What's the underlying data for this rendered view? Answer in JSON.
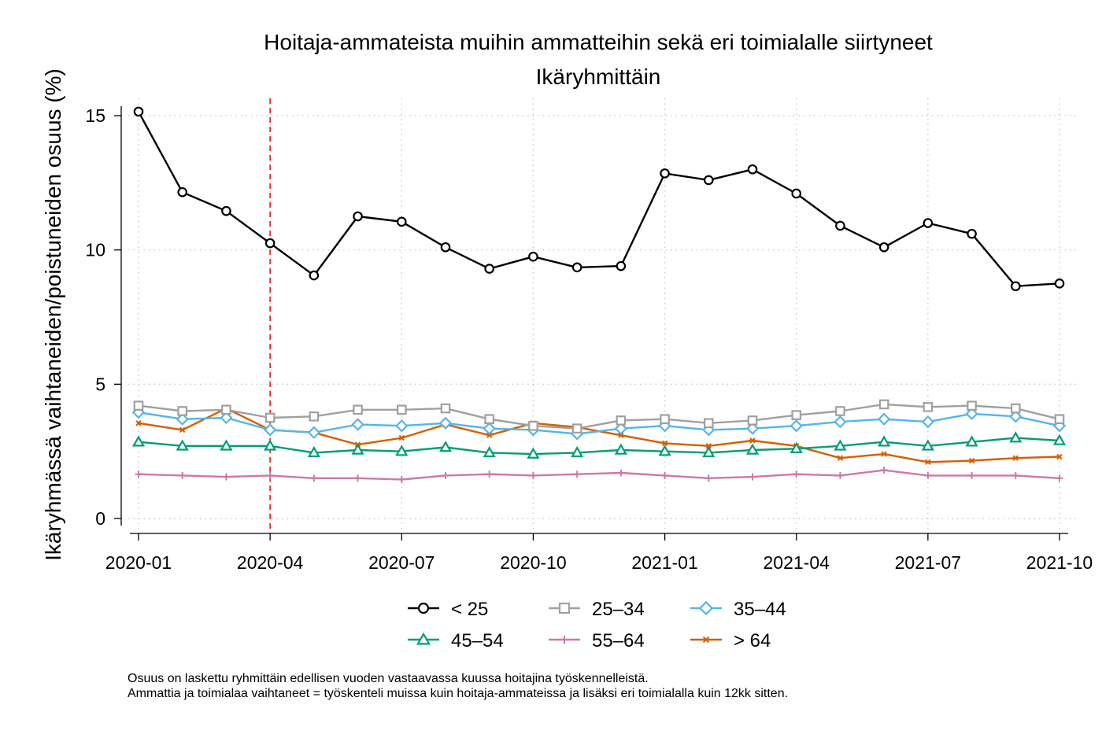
{
  "chart_data": {
    "type": "line",
    "title": "Hoitaja-ammateista muihin ammatteihin sekä eri toimialalle siirtyneet",
    "subtitle": "Ikäryhmittäin",
    "xlabel": "",
    "ylabel": "Ikäryhmässä vaihtaneiden/poistuneiden osuus (%)",
    "ylim": [
      0,
      15.5
    ],
    "yticks": [
      "0",
      "5",
      "10",
      "15"
    ],
    "x": [
      "2020-01",
      "2020-02",
      "2020-03",
      "2020-04",
      "2020-05",
      "2020-06",
      "2020-07",
      "2020-08",
      "2020-09",
      "2020-10",
      "2020-11",
      "2020-12",
      "2021-01",
      "2021-02",
      "2021-03",
      "2021-04",
      "2021-05",
      "2021-06",
      "2021-07",
      "2021-08",
      "2021-09",
      "2021-10"
    ],
    "xticks": [
      "2020-01",
      "2020-04",
      "2020-07",
      "2020-10",
      "2021-01",
      "2021-04",
      "2021-07",
      "2021-10"
    ],
    "vline": "2020-04",
    "grid": true,
    "legend_position": "bottom",
    "series": [
      {
        "name": "< 25",
        "color": "#000000",
        "marker": "circle",
        "values": [
          15.15,
          12.15,
          11.45,
          10.25,
          9.05,
          11.25,
          11.05,
          10.1,
          9.3,
          9.75,
          9.35,
          9.4,
          12.85,
          12.6,
          13.0,
          12.1,
          10.9,
          10.1,
          11.0,
          10.6,
          8.65,
          8.75
        ]
      },
      {
        "name": "25–34",
        "color": "#a0a0a0",
        "marker": "square",
        "values": [
          4.2,
          4.0,
          4.05,
          3.75,
          3.8,
          4.05,
          4.05,
          4.1,
          3.7,
          3.45,
          3.35,
          3.65,
          3.7,
          3.55,
          3.65,
          3.85,
          4.0,
          4.25,
          4.15,
          4.2,
          4.1,
          3.7
        ]
      },
      {
        "name": "35–44",
        "color": "#56b4e9",
        "marker": "diamond",
        "values": [
          3.95,
          3.7,
          3.75,
          3.3,
          3.2,
          3.5,
          3.45,
          3.55,
          3.35,
          3.3,
          3.15,
          3.35,
          3.45,
          3.3,
          3.35,
          3.45,
          3.6,
          3.7,
          3.6,
          3.9,
          3.8,
          3.45
        ]
      },
      {
        "name": "45–54",
        "color": "#009e73",
        "marker": "triangle",
        "values": [
          2.85,
          2.7,
          2.7,
          2.7,
          2.45,
          2.55,
          2.5,
          2.65,
          2.45,
          2.4,
          2.45,
          2.55,
          2.5,
          2.45,
          2.55,
          2.6,
          2.7,
          2.85,
          2.7,
          2.85,
          3.0,
          2.9
        ]
      },
      {
        "name": "55–64",
        "color": "#cc79a7",
        "marker": "plus",
        "values": [
          1.65,
          1.6,
          1.55,
          1.6,
          1.5,
          1.5,
          1.45,
          1.6,
          1.65,
          1.6,
          1.65,
          1.7,
          1.6,
          1.5,
          1.55,
          1.65,
          1.6,
          1.8,
          1.6,
          1.6,
          1.6,
          1.5
        ]
      },
      {
        "name": "> 64",
        "color": "#d55e00",
        "marker": "x",
        "values": [
          3.55,
          3.3,
          4.1,
          3.3,
          3.2,
          2.75,
          3.0,
          3.5,
          3.1,
          3.55,
          3.4,
          3.1,
          2.8,
          2.7,
          2.9,
          2.7,
          2.25,
          2.4,
          2.1,
          2.15,
          2.25,
          2.3
        ]
      }
    ]
  },
  "notes": [
    "Osuus on laskettu ryhmittäin edellisen vuoden vastaavassa kuussa hoitajina työskennelleistä.",
    "Ammattia ja toimialaa vaihtaneet = työskenteli muissa kuin hoitaja-ammateissa ja lisäksi eri toimialalla kuin 12kk sitten."
  ]
}
